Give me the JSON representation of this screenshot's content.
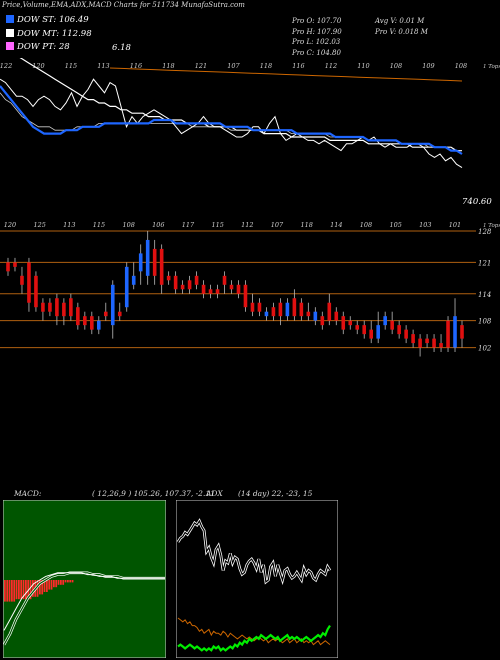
{
  "header": {
    "title": "Price,Volume,EMA,ADX,MACD Charts for 511734 MunafaSutra.com"
  },
  "legend": [
    {
      "label": "DOW ST: 106.49",
      "color": "#1e66ff"
    },
    {
      "label": "DOW MT: 112.98",
      "color": "#ffffff"
    },
    {
      "label": "DOW PT: 28",
      "color": "#ff66ff"
    }
  ],
  "legend_extra": "6.18",
  "ohlc": {
    "open": "Pro   O: 107.70",
    "high": "Pro   H: 107.90",
    "low": "Pro   L: 102.03",
    "close": "Pro   C: 104.80"
  },
  "volume": {
    "avg": "Avg V: 0.01 M",
    "pro": "Pro   V: 0.018  M"
  },
  "ema_panel": {
    "top_labels": [
      "122",
      "120",
      "115",
      "113",
      "116",
      "118",
      "121",
      "107",
      "118",
      "116",
      "112",
      "110",
      "108",
      "109",
      "108"
    ],
    "right_label": "1 Tops",
    "last_value": "740.60",
    "chart_data": {
      "type": "line",
      "series": [
        {
          "color": "#ffffff",
          "values": [
            132,
            131,
            129,
            127,
            127,
            126,
            124,
            126,
            127,
            126,
            124,
            123,
            125,
            128,
            124,
            127,
            129,
            132,
            130,
            128,
            131,
            130,
            124,
            118,
            121,
            119,
            121,
            122,
            123,
            122,
            121,
            120,
            118,
            116,
            117,
            118,
            119,
            121,
            119,
            118,
            118,
            117,
            116,
            115,
            115,
            116,
            118,
            118,
            116,
            119,
            121,
            116,
            114,
            115,
            116,
            115,
            114,
            114,
            113,
            114,
            113,
            112,
            111,
            113,
            113,
            114,
            115,
            114,
            115,
            113,
            112,
            113,
            112,
            112,
            112,
            113,
            113,
            112,
            110,
            109,
            110,
            108,
            109,
            107,
            106
          ]
        },
        {
          "color": "#1e66ff",
          "values": [
            130,
            128,
            126,
            124,
            122,
            120,
            118,
            117,
            116,
            116,
            116,
            116,
            117,
            117,
            117,
            118,
            118,
            118,
            118,
            119,
            119,
            119,
            119,
            119,
            119,
            119,
            119,
            119,
            120,
            120,
            120,
            120,
            119,
            119,
            119,
            119,
            119,
            119,
            119,
            119,
            119,
            118,
            118,
            118,
            118,
            118,
            117,
            117,
            117,
            117,
            117,
            117,
            117,
            117,
            116,
            116,
            116,
            116,
            116,
            116,
            116,
            115,
            115,
            115,
            115,
            115,
            115,
            114,
            114,
            114,
            114,
            114,
            114,
            113,
            113,
            113,
            113,
            113,
            113,
            112,
            112,
            112,
            111,
            111,
            110
          ]
        },
        {
          "color": "#cccccc",
          "values": [
            128,
            126,
            125,
            123,
            121,
            120,
            119,
            118,
            118,
            118,
            117,
            117,
            117,
            117,
            118,
            118,
            118,
            118,
            119,
            119,
            119,
            119,
            119,
            119,
            119,
            119,
            119,
            119,
            119,
            119,
            119,
            119,
            119,
            119,
            119,
            118,
            118,
            118,
            118,
            118,
            118,
            118,
            117,
            117,
            117,
            117,
            117,
            117,
            117,
            117,
            117,
            117,
            117,
            116,
            116,
            116,
            116,
            116,
            116,
            116,
            115,
            115,
            115,
            115,
            115,
            115,
            115,
            114,
            114,
            114,
            114,
            114,
            114,
            113,
            113,
            113,
            113,
            113,
            112,
            112,
            112,
            112,
            111,
            111,
            111
          ]
        },
        {
          "color": "#ffffff",
          "values": [
            142,
            141,
            140,
            139,
            138,
            137,
            136,
            135,
            134,
            133,
            132,
            131,
            130,
            129,
            128,
            127,
            126,
            126,
            125,
            125,
            124,
            124,
            123,
            123,
            122,
            122,
            122,
            121,
            121,
            121,
            120,
            120,
            120,
            120,
            119,
            119,
            119,
            119,
            118,
            118,
            118,
            118,
            118,
            117,
            117,
            117,
            117,
            117,
            116,
            116,
            116,
            116,
            116,
            115,
            115,
            115,
            115,
            115,
            115,
            115,
            114,
            114,
            114,
            114,
            114,
            114,
            114,
            113,
            113,
            113,
            113,
            113,
            113,
            113,
            113,
            112,
            112,
            112,
            112,
            112,
            112,
            112,
            112,
            111,
            111
          ]
        },
        {
          "color": "#cc6600",
          "values": [
            170,
            167,
            164,
            161,
            158,
            155,
            152,
            149,
            146,
            143,
            140,
            137,
            134,
            131,
            128,
            125,
            122,
            119,
            116,
            113,
            110,
            107,
            104,
            101,
            98
          ]
        }
      ]
    }
  },
  "price_panel": {
    "top_labels": [
      "120",
      "125",
      "113",
      "115",
      "108",
      "106",
      "117",
      "115",
      "112",
      "107",
      "118",
      "114",
      "108",
      "105",
      "103",
      "101"
    ],
    "right_label": "1 Tops",
    "levels": [
      {
        "label": "128",
        "value": 128
      },
      {
        "label": "121",
        "value": 121
      },
      {
        "label": "114",
        "value": 114
      },
      {
        "label": "108",
        "value": 108
      },
      {
        "label": "102",
        "value": 102
      }
    ],
    "chart_data": {
      "type": "candlestick",
      "ylim": [
        97,
        130
      ],
      "candles": [
        {
          "o": 121,
          "c": 119,
          "h": 122,
          "l": 118
        },
        {
          "o": 121,
          "c": 120,
          "h": 122,
          "l": 119
        },
        {
          "o": 118,
          "c": 116,
          "h": 120,
          "l": 114
        },
        {
          "o": 121,
          "c": 112,
          "h": 122,
          "l": 110
        },
        {
          "o": 118,
          "c": 111,
          "h": 119,
          "l": 110
        },
        {
          "o": 112,
          "c": 110,
          "h": 113,
          "l": 108
        },
        {
          "o": 112,
          "c": 110,
          "h": 113,
          "l": 109
        },
        {
          "o": 113,
          "c": 109,
          "h": 114,
          "l": 107
        },
        {
          "o": 112,
          "c": 109,
          "h": 113,
          "l": 107
        },
        {
          "o": 113,
          "c": 109,
          "h": 114,
          "l": 108
        },
        {
          "o": 111,
          "c": 107,
          "h": 112,
          "l": 106
        },
        {
          "o": 109,
          "c": 107,
          "h": 110,
          "l": 106
        },
        {
          "o": 109,
          "c": 106,
          "h": 110,
          "l": 105
        },
        {
          "o": 106,
          "c": 108,
          "h": 109,
          "l": 105
        },
        {
          "o": 110,
          "c": 109,
          "h": 112,
          "l": 108
        },
        {
          "o": 107,
          "c": 116,
          "h": 117,
          "l": 104
        },
        {
          "o": 110,
          "c": 109,
          "h": 112,
          "l": 108
        },
        {
          "o": 111,
          "c": 120,
          "h": 121,
          "l": 110
        },
        {
          "o": 116,
          "c": 118,
          "h": 121,
          "l": 115
        },
        {
          "o": 119,
          "c": 123,
          "h": 125,
          "l": 116
        },
        {
          "o": 118,
          "c": 126,
          "h": 128,
          "l": 116
        },
        {
          "o": 124,
          "c": 118,
          "h": 126,
          "l": 116
        },
        {
          "o": 124,
          "c": 116,
          "h": 125,
          "l": 114
        },
        {
          "o": 118,
          "c": 117,
          "h": 119,
          "l": 116
        },
        {
          "o": 118,
          "c": 115,
          "h": 119,
          "l": 114
        },
        {
          "o": 116,
          "c": 115,
          "h": 117,
          "l": 114
        },
        {
          "o": 117,
          "c": 115,
          "h": 118,
          "l": 114
        },
        {
          "o": 118,
          "c": 116,
          "h": 119,
          "l": 115
        },
        {
          "o": 116,
          "c": 114,
          "h": 117,
          "l": 113
        },
        {
          "o": 115,
          "c": 114,
          "h": 116,
          "l": 113
        },
        {
          "o": 115,
          "c": 114,
          "h": 116,
          "l": 113
        },
        {
          "o": 118,
          "c": 116,
          "h": 119,
          "l": 114
        },
        {
          "o": 116,
          "c": 115,
          "h": 117,
          "l": 114
        },
        {
          "o": 116,
          "c": 114,
          "h": 117,
          "l": 113
        },
        {
          "o": 116,
          "c": 111,
          "h": 117,
          "l": 110
        },
        {
          "o": 112,
          "c": 110,
          "h": 114,
          "l": 109
        },
        {
          "o": 112,
          "c": 110,
          "h": 113,
          "l": 109
        },
        {
          "o": 109,
          "c": 110,
          "h": 111,
          "l": 108
        },
        {
          "o": 111,
          "c": 109,
          "h": 112,
          "l": 108
        },
        {
          "o": 112,
          "c": 109,
          "h": 113,
          "l": 107
        },
        {
          "o": 109,
          "c": 112,
          "h": 113,
          "l": 108
        },
        {
          "o": 113,
          "c": 109,
          "h": 115,
          "l": 108
        },
        {
          "o": 112,
          "c": 109,
          "h": 113,
          "l": 108
        },
        {
          "o": 110,
          "c": 109,
          "h": 112,
          "l": 108
        },
        {
          "o": 108,
          "c": 110,
          "h": 111,
          "l": 107
        },
        {
          "o": 109,
          "c": 107,
          "h": 110,
          "l": 106
        },
        {
          "o": 112,
          "c": 108,
          "h": 114,
          "l": 107
        },
        {
          "o": 110,
          "c": 108,
          "h": 111,
          "l": 107
        },
        {
          "o": 109,
          "c": 106,
          "h": 110,
          "l": 105
        },
        {
          "o": 108,
          "c": 107,
          "h": 109,
          "l": 106
        },
        {
          "o": 107,
          "c": 106,
          "h": 108,
          "l": 105
        },
        {
          "o": 107,
          "c": 105,
          "h": 108,
          "l": 104
        },
        {
          "o": 106,
          "c": 104,
          "h": 108,
          "l": 103
        },
        {
          "o": 104,
          "c": 107,
          "h": 110,
          "l": 103
        },
        {
          "o": 107,
          "c": 109,
          "h": 110,
          "l": 106
        },
        {
          "o": 108,
          "c": 106,
          "h": 110,
          "l": 105
        },
        {
          "o": 107,
          "c": 105,
          "h": 108,
          "l": 104
        },
        {
          "o": 106,
          "c": 104,
          "h": 107,
          "l": 103
        },
        {
          "o": 105,
          "c": 103,
          "h": 106,
          "l": 102
        },
        {
          "o": 104,
          "c": 102,
          "h": 105,
          "l": 100
        },
        {
          "o": 104,
          "c": 103,
          "h": 105,
          "l": 102
        },
        {
          "o": 104,
          "c": 102,
          "h": 105,
          "l": 101
        },
        {
          "o": 103,
          "c": 102,
          "h": 105,
          "l": 101
        },
        {
          "o": 108,
          "c": 102,
          "h": 109,
          "l": 101
        },
        {
          "o": 102,
          "c": 109,
          "h": 113,
          "l": 101
        },
        {
          "o": 107,
          "c": 104,
          "h": 108,
          "l": 102
        }
      ]
    }
  },
  "macd_panel": {
    "label": "MACD:",
    "values": "( 12,26,9 ) 105.26,  107.37, -2.11",
    "chart_data": {
      "type": "histogram+line",
      "histogram": [
        -9,
        -9,
        -9,
        -9,
        -9,
        -8,
        -8,
        -8,
        -8,
        -8,
        -8,
        -8,
        -7,
        -7,
        -7,
        -6,
        -6,
        -5,
        -5,
        -4,
        -4,
        -3,
        -3,
        -2,
        -2,
        -2,
        -1,
        -1,
        -1,
        -1
      ],
      "macd": [
        -14,
        -11,
        -8,
        -5,
        -3,
        -1,
        0,
        1,
        1.5,
        2,
        2,
        2,
        2,
        2,
        1.5,
        1.5,
        1,
        1,
        1,
        0.5,
        0.5,
        0.5,
        0.5,
        0.5,
        0.5,
        0.5,
        0.5,
        0.5
      ],
      "signal": [
        -18,
        -15,
        -11,
        -8,
        -5,
        -3,
        -1,
        0,
        1,
        1.5,
        1.5,
        2,
        2,
        2,
        2,
        1.5,
        1.5,
        1,
        1,
        1,
        0.5,
        0.5,
        0.5,
        0.5,
        0.5,
        0.5,
        0.5,
        0.5
      ]
    }
  },
  "adx_panel": {
    "label": "ADX",
    "values": "(14  day) 22,  -23,  15",
    "chart_data": {
      "type": "line",
      "series": [
        {
          "name": "+DI",
          "color": "#ffffff",
          "values": [
            60,
            62,
            63,
            65,
            64,
            66,
            68,
            70,
            69,
            71,
            68,
            66,
            55,
            57,
            52,
            49,
            56,
            58,
            53,
            45,
            50,
            49,
            54,
            49,
            52,
            51,
            46,
            43,
            44,
            48,
            50,
            51,
            49,
            46,
            51,
            44,
            48,
            39,
            40,
            47,
            49,
            42,
            48,
            44,
            40,
            45,
            46,
            43,
            41,
            42,
            44,
            42,
            40,
            46,
            43,
            45,
            44,
            41,
            40,
            43,
            45,
            44,
            43,
            47,
            45
          ]
        },
        {
          "name": "-DI",
          "color": "#cc6600",
          "values": [
            20,
            19,
            18,
            19,
            17,
            18,
            16,
            16,
            15,
            13,
            14,
            12,
            13,
            14,
            11,
            13,
            12,
            12,
            11,
            13,
            12,
            10,
            12,
            11,
            10,
            9,
            10,
            11,
            10,
            9,
            10,
            9,
            8,
            9,
            10,
            9,
            8,
            9,
            7,
            8,
            9,
            8,
            9,
            8,
            7,
            8,
            9,
            7,
            8,
            9,
            7,
            8,
            9,
            7,
            8,
            7,
            8,
            6,
            7,
            8,
            6,
            7,
            8,
            7,
            6
          ]
        },
        {
          "name": "ADX",
          "color": "#00ee00",
          "values": [
            5,
            6,
            5,
            4,
            5,
            6,
            5,
            4,
            5,
            4,
            3,
            4,
            3,
            4,
            3,
            5,
            4,
            5,
            3,
            4,
            3,
            4,
            5,
            4,
            6,
            5,
            7,
            6,
            8,
            7,
            9,
            8,
            9,
            10,
            9,
            11,
            10,
            9,
            10,
            11,
            10,
            9,
            10,
            8,
            9,
            10,
            11,
            9,
            10,
            9,
            10,
            9,
            8,
            9,
            10,
            9,
            8,
            9,
            10,
            11,
            10,
            12,
            11,
            14,
            16
          ]
        }
      ]
    }
  }
}
